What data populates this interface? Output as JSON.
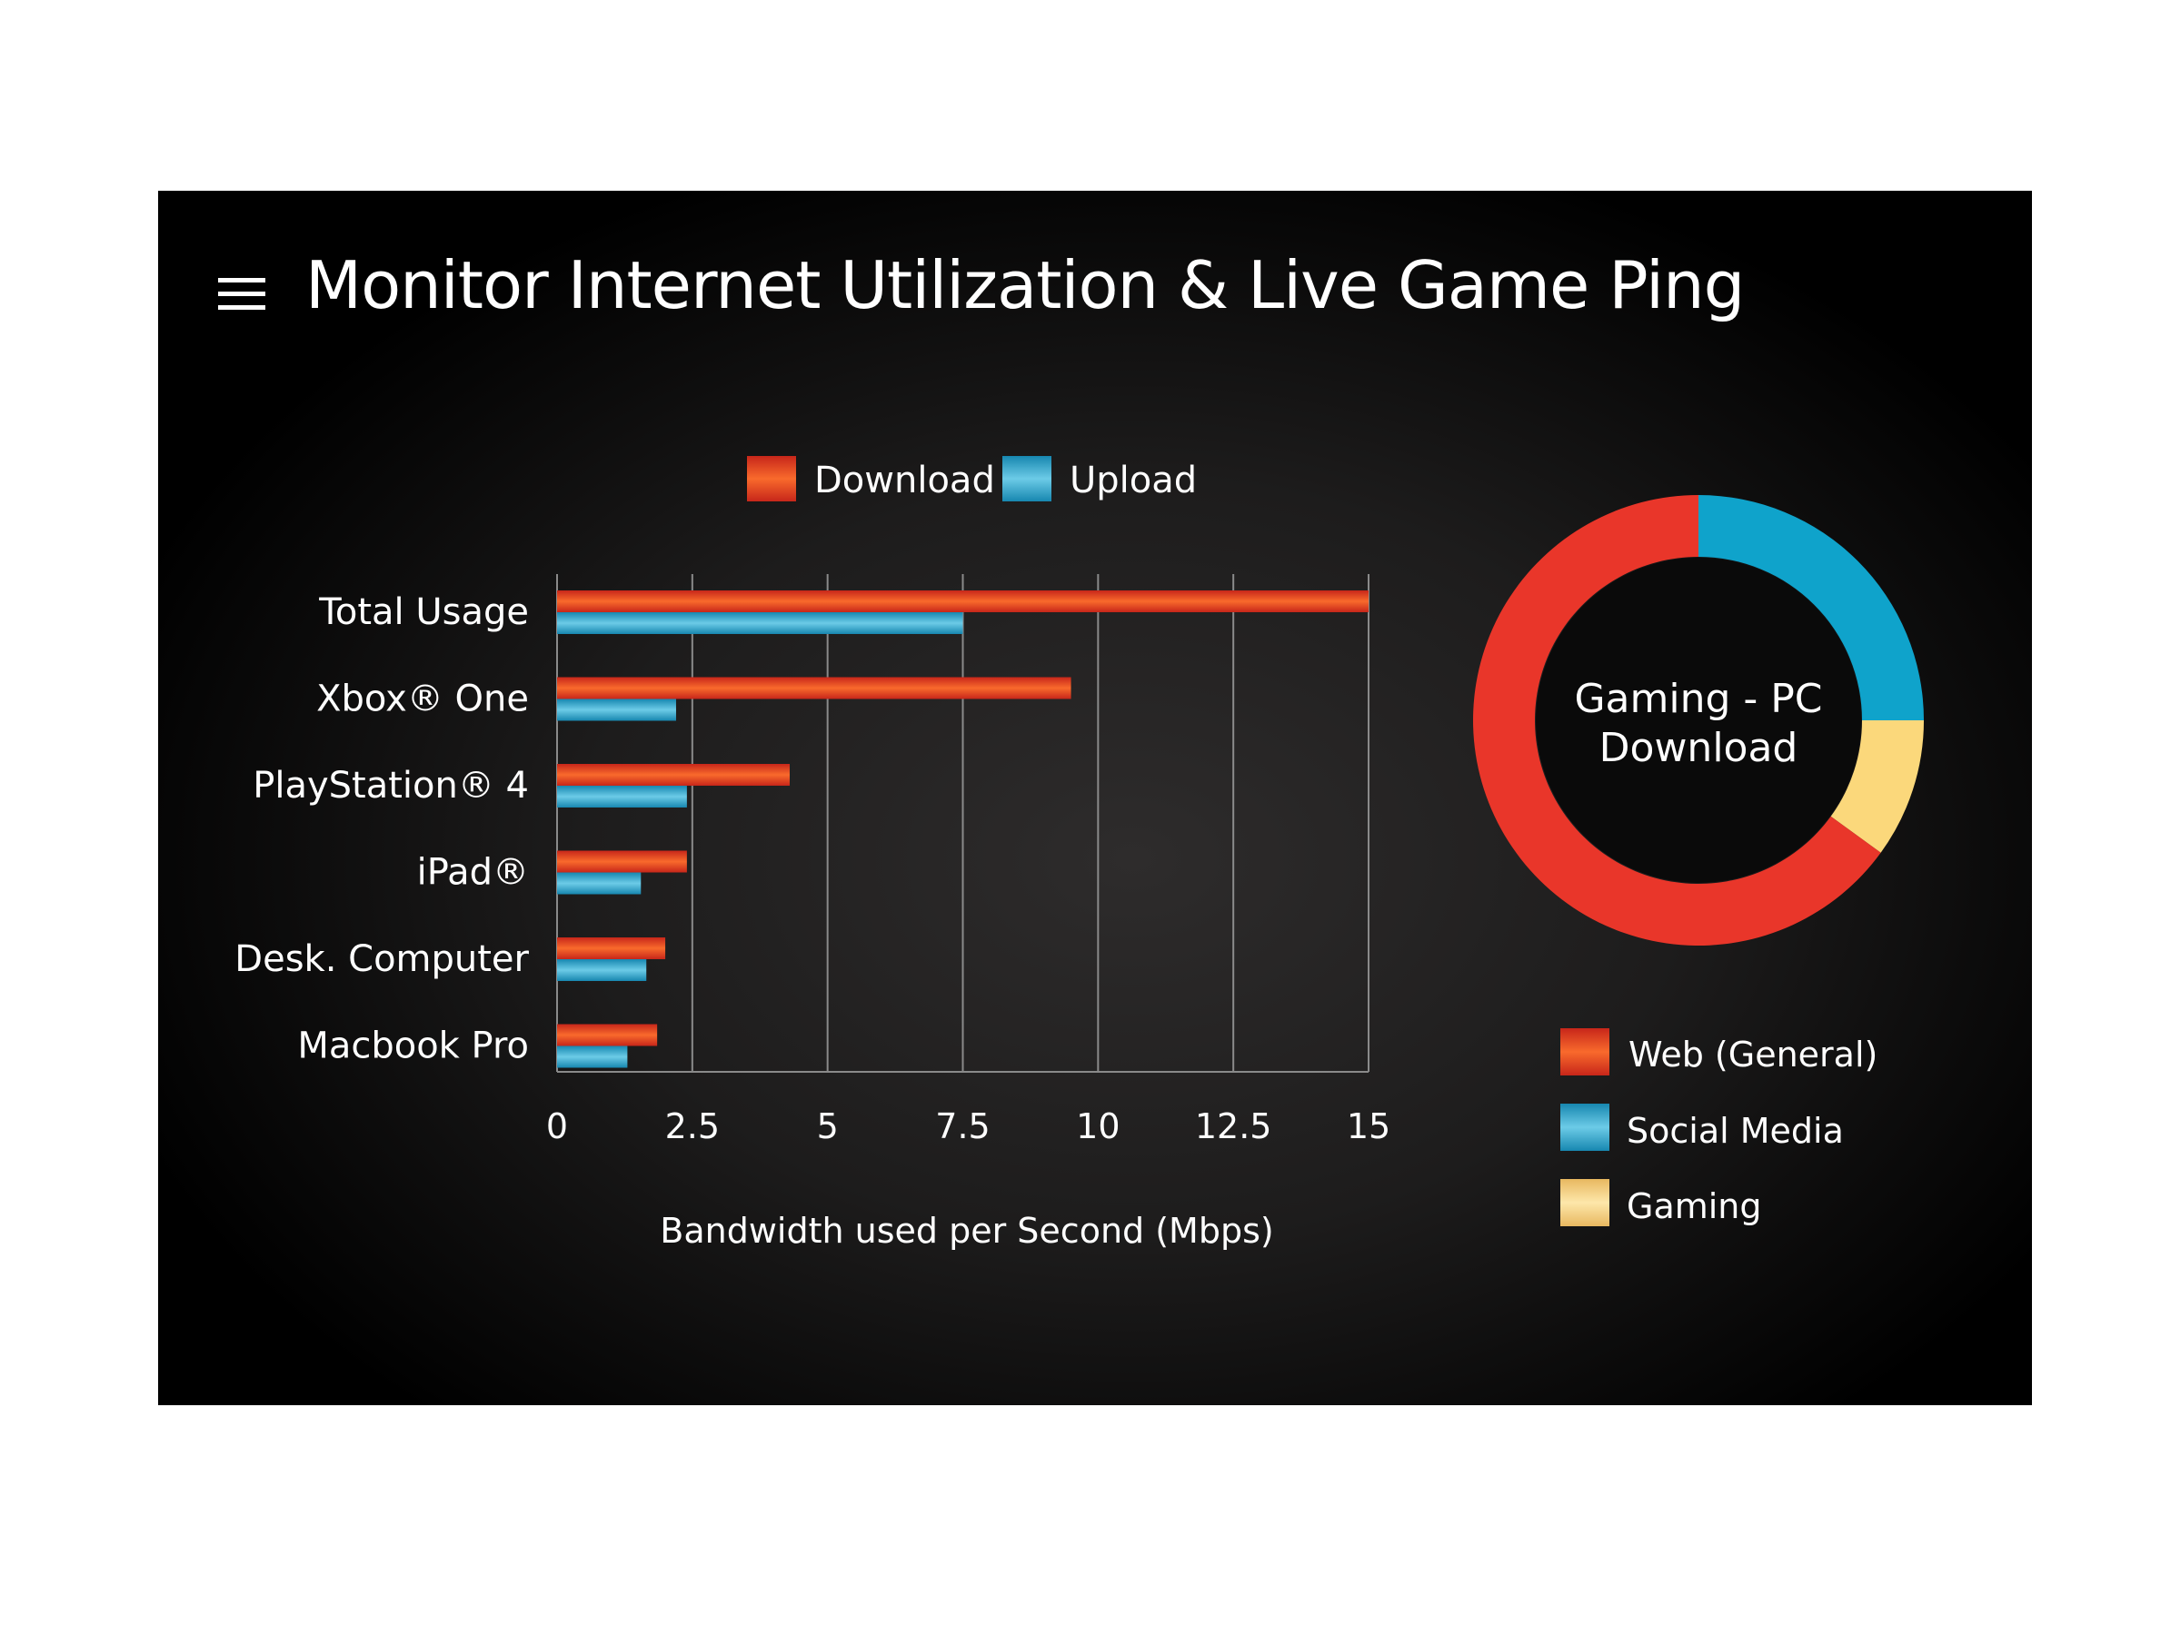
{
  "window": {
    "title": "Monitor Internet Utilization & Live Game Ping"
  },
  "colors": {
    "download": "#ee3e24",
    "upload": "#2fa8cf",
    "web": "#e9362a",
    "social": "#0fa3cb",
    "gaming": "#fbd87b",
    "background": "#000000",
    "text": "#ffffff"
  },
  "icons": {
    "menu": "hamburger-menu-icon"
  },
  "chart_data": [
    {
      "type": "bar",
      "orientation": "horizontal",
      "categories": [
        "Total Usage",
        "Xbox® One",
        "PlayStation® 4",
        "iPad®",
        "Desk. Computer",
        "Macbook Pro"
      ],
      "series": [
        {
          "name": "Download",
          "values": [
            15,
            9.5,
            4.3,
            2.4,
            2.0,
            1.85
          ]
        },
        {
          "name": "Upload",
          "values": [
            7.5,
            2.2,
            2.4,
            1.55,
            1.65,
            1.3
          ]
        }
      ],
      "xticks": [
        "0",
        "2.5",
        "5",
        "7.5",
        "10",
        "12.5",
        "15"
      ],
      "xlim": [
        0,
        15
      ],
      "xlabel": "Bandwidth used per Second (Mbps)",
      "ylabel": "",
      "grid": "vertical",
      "legend": "top"
    },
    {
      "type": "pie",
      "variant": "donut",
      "center_label": [
        "Gaming - PC",
        "Download"
      ],
      "slices": [
        {
          "label": "Social Media",
          "value": 25
        },
        {
          "label": "Gaming",
          "value": 10
        },
        {
          "label": "Web (General)",
          "value": 65
        }
      ],
      "legend_order": [
        "Web (General)",
        "Social Media",
        "Gaming"
      ],
      "legend": "bottom"
    }
  ]
}
